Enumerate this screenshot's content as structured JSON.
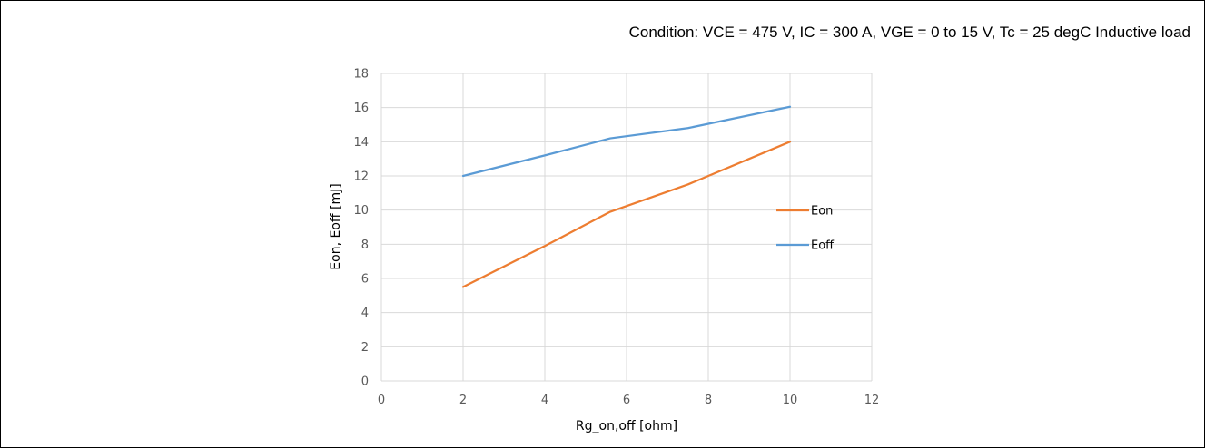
{
  "condition_text": "Condition: VCE = 475 V, IC = 300 A, VGE = 0 to 15 V, Tc = 25 degC Inductive load",
  "chart_data": {
    "type": "line",
    "title": "",
    "xlabel": "Rg_on,off [ohm]",
    "ylabel": "Eon, Eoff [mJ]",
    "xlim": [
      0,
      12
    ],
    "ylim": [
      0,
      18
    ],
    "xticks": [
      0,
      2,
      4,
      6,
      8,
      10,
      12
    ],
    "yticks": [
      0,
      2,
      4,
      6,
      8,
      10,
      12,
      14,
      16,
      18
    ],
    "grid": true,
    "legend_position": "right",
    "series": [
      {
        "name": "Eon",
        "color": "#ED7D31",
        "x": [
          2,
          4,
          5.6,
          7.5,
          10
        ],
        "y": [
          5.5,
          7.9,
          9.9,
          11.5,
          14.0
        ]
      },
      {
        "name": "Eoff",
        "color": "#5B9BD5",
        "x": [
          2,
          4,
          5.6,
          7.5,
          10
        ],
        "y": [
          12.0,
          13.2,
          14.2,
          14.8,
          16.05
        ]
      }
    ]
  }
}
